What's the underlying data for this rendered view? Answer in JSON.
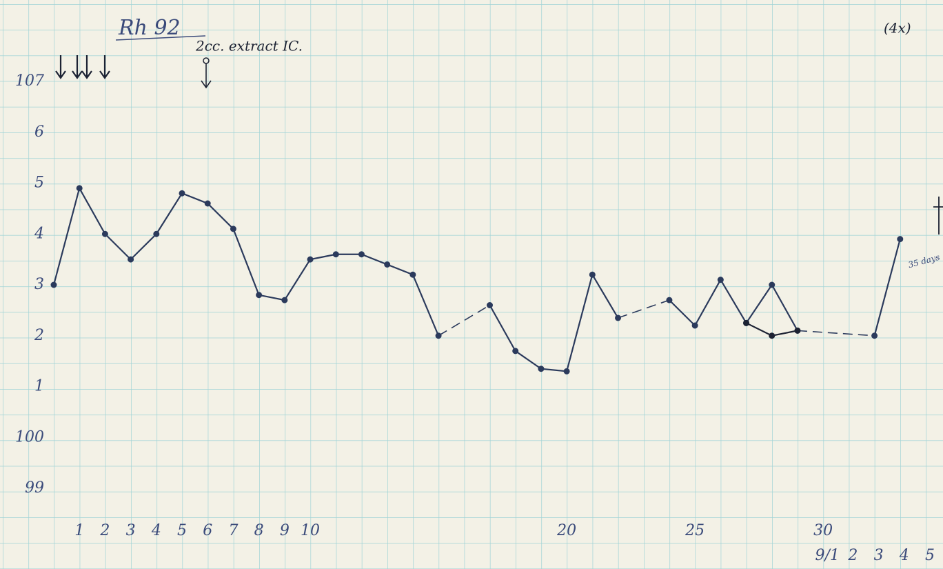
{
  "chart_data": {
    "type": "line",
    "title": "Rh 92",
    "annotations": [
      "2cc. extract IC.",
      "(4x)",
      "35 days"
    ],
    "x": [
      0,
      1,
      2,
      3,
      4,
      5,
      6,
      7,
      8,
      9,
      10,
      11,
      12,
      13,
      14,
      15,
      16,
      17,
      18,
      19,
      20,
      21,
      22,
      23,
      24,
      25,
      26,
      27,
      28,
      29,
      30,
      31,
      32,
      33
    ],
    "series": [
      {
        "color": "#2b3a5c",
        "values": [
          103.0,
          104.9,
          104.0,
          103.5,
          104.0,
          104.8,
          104.6,
          104.1,
          102.8,
          102.7,
          103.5,
          103.6,
          103.6,
          103.4,
          103.2,
          102.0,
          null,
          102.6,
          101.7,
          101.35,
          101.3,
          103.2,
          102.35,
          null,
          102.7,
          102.2,
          103.1,
          102.25,
          103.0,
          102.1,
          null,
          null,
          102.0,
          103.9
        ]
      },
      {
        "color": "#1c2233",
        "values": [
          null,
          null,
          null,
          null,
          null,
          null,
          null,
          null,
          null,
          null,
          null,
          null,
          null,
          null,
          null,
          null,
          null,
          null,
          null,
          null,
          null,
          null,
          null,
          null,
          null,
          null,
          null,
          102.25,
          102.0,
          102.1,
          null,
          null,
          null,
          null
        ]
      }
    ],
    "xlim": [
      0,
      34
    ],
    "xticks": [
      1,
      2,
      3,
      4,
      5,
      6,
      7,
      8,
      9,
      10,
      20,
      25,
      30
    ],
    "date_ticks": [
      {
        "value": 30,
        "label": "9/1"
      },
      {
        "value": 31,
        "label": "2"
      },
      {
        "value": 32,
        "label": "3"
      },
      {
        "value": 33,
        "label": "4"
      },
      {
        "value": 34,
        "label": "5"
      }
    ],
    "ylim": [
      99,
      107
    ],
    "yticks": [
      99,
      100,
      {
        "value": 101,
        "label": "1"
      },
      {
        "value": 102,
        "label": "2"
      },
      {
        "value": 103,
        "label": "3"
      },
      {
        "value": 104,
        "label": "4"
      },
      {
        "value": 105,
        "label": "5"
      },
      {
        "value": 106,
        "label": "6"
      },
      107
    ],
    "grid": true
  }
}
